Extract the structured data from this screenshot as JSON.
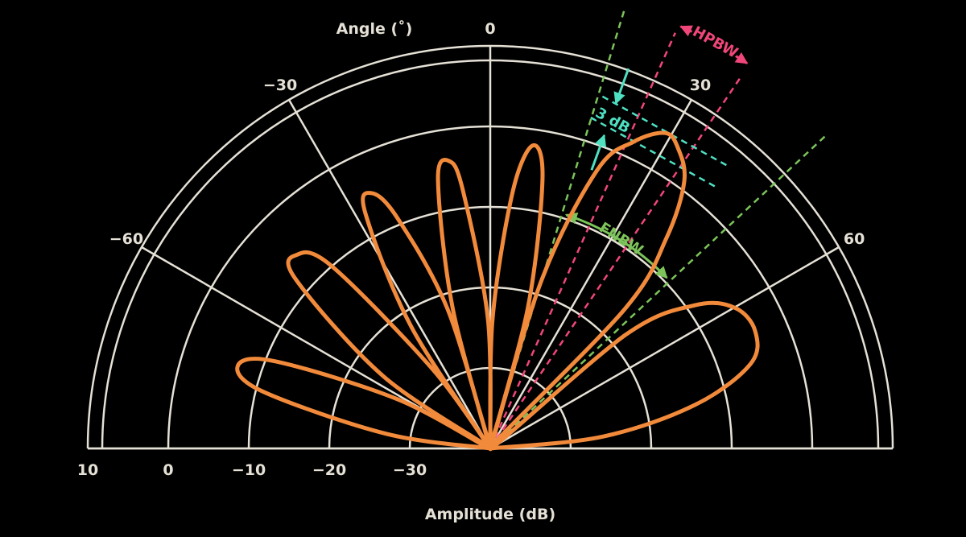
{
  "chart_data": {
    "type": "polar",
    "title": "",
    "angle_label": "Angle (˚)",
    "amplitude_label": "Amplitude (dB)",
    "angle_ticks": [
      {
        "value": -90,
        "label": ""
      },
      {
        "value": -60,
        "label": "−60"
      },
      {
        "value": -30,
        "label": "−30"
      },
      {
        "value": 0,
        "label": "0"
      },
      {
        "value": 30,
        "label": "30"
      },
      {
        "value": 60,
        "label": "60"
      },
      {
        "value": 90,
        "label": ""
      }
    ],
    "amplitude_ticks": [
      {
        "value": 10,
        "label": "10"
      },
      {
        "value": 0,
        "label": "0"
      },
      {
        "value": -10,
        "label": "−10"
      },
      {
        "value": -20,
        "label": "−20"
      },
      {
        "value": -30,
        "label": "−30"
      }
    ],
    "amplitude_range": [
      -40,
      10
    ],
    "angle_range": [
      -90,
      90
    ],
    "series": [
      {
        "points": [
          {
            "angle": -90,
            "amp": -40
          },
          {
            "angle": -82,
            "amp": -27
          },
          {
            "angle": -76,
            "amp": -11
          },
          {
            "angle": -72,
            "amp": -7
          },
          {
            "angle": -68,
            "amp": -11
          },
          {
            "angle": -62,
            "amp": -27
          },
          {
            "angle": -58,
            "amp": -40
          },
          {
            "angle": -56,
            "amp": -24
          },
          {
            "angle": -49,
            "amp": -8
          },
          {
            "angle": -45,
            "amp": -6
          },
          {
            "angle": -41,
            "amp": -10
          },
          {
            "angle": -36,
            "amp": -28
          },
          {
            "angle": -34,
            "amp": -40
          },
          {
            "angle": -33,
            "amp": -22
          },
          {
            "angle": -28,
            "amp": -7
          },
          {
            "angle": -25,
            "amp": -5
          },
          {
            "angle": -22,
            "amp": -9
          },
          {
            "angle": -17,
            "amp": -22
          },
          {
            "angle": -16,
            "amp": -40
          },
          {
            "angle": -15,
            "amp": -22
          },
          {
            "angle": -11,
            "amp": -6
          },
          {
            "angle": -8,
            "amp": -4
          },
          {
            "angle": -6,
            "amp": -8
          },
          {
            "angle": -1,
            "amp": -24
          },
          {
            "angle": 0,
            "amp": -40
          },
          {
            "angle": 1,
            "amp": -24
          },
          {
            "angle": 5,
            "amp": -8
          },
          {
            "angle": 8,
            "amp": -2
          },
          {
            "angle": 11,
            "amp": -6
          },
          {
            "angle": 15,
            "amp": -22
          },
          {
            "angle": 16,
            "amp": -40
          },
          {
            "angle": 17,
            "amp": -18
          },
          {
            "angle": 21,
            "amp": -3
          },
          {
            "angle": 25,
            "amp": 2
          },
          {
            "angle": 29,
            "amp": 4.8
          },
          {
            "angle": 32,
            "amp": 4
          },
          {
            "angle": 36,
            "amp": 1
          },
          {
            "angle": 40,
            "amp": -6
          },
          {
            "angle": 44,
            "amp": -16
          },
          {
            "angle": 47,
            "amp": -40
          },
          {
            "angle": 50,
            "amp": -18
          },
          {
            "angle": 55,
            "amp": -9
          },
          {
            "angle": 60,
            "amp": -5
          },
          {
            "angle": 66,
            "amp": -4
          },
          {
            "angle": 72,
            "amp": -6
          },
          {
            "angle": 78,
            "amp": -14
          },
          {
            "angle": 84,
            "amp": -26
          },
          {
            "angle": 90,
            "amp": -40
          }
        ]
      }
    ],
    "annotations": {
      "hpbw": {
        "text": "HPBW",
        "angles": [
          24,
          34
        ]
      },
      "fnbw": {
        "text": "FNBW",
        "angles": [
          17,
          47
        ]
      },
      "three_db": {
        "text": "3 dB",
        "amplitudes": [
          5,
          2
        ]
      }
    },
    "colors": {
      "background": "#000000",
      "grid": "#e6e1d6",
      "pattern": "#f28a3c",
      "hpbw": "#f0467a",
      "fnbw": "#7cc45a",
      "three_db": "#4fe0c2"
    }
  }
}
